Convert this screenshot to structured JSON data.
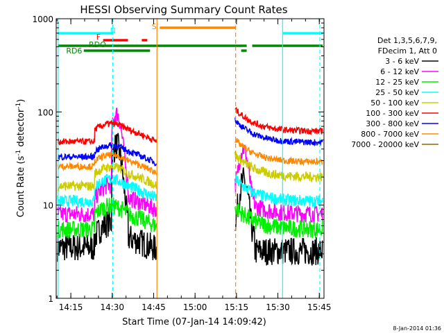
{
  "chart_data": {
    "type": "line",
    "title": "HESSI Observing Summary Count Rates",
    "xlabel": "Start Time (07-Jan-14 14:09:42)",
    "ylabel_main": "Count Rate (s",
    "ylabel_sup1": "-1",
    "ylabel_mid": " detector",
    "ylabel_sup2": "-1",
    "ylabel_end": ")",
    "y_scale": "log",
    "ylim": [
      1,
      1000
    ],
    "xlim_minutes": [
      0,
      97
    ],
    "x_ticks": [
      {
        "label": "14:15",
        "min": 5.3
      },
      {
        "label": "14:30",
        "min": 20.3
      },
      {
        "label": "14:45",
        "min": 35.3
      },
      {
        "label": "15:00",
        "min": 50.3
      },
      {
        "label": "15:15",
        "min": 65.3
      },
      {
        "label": "15:30",
        "min": 80.3
      },
      {
        "label": "15:45",
        "min": 95.3
      }
    ],
    "y_ticks": [
      {
        "label": "1",
        "v": 1
      },
      {
        "label": "10",
        "v": 10
      },
      {
        "label": "100",
        "v": 100
      },
      {
        "label": "1000",
        "v": 1000
      }
    ],
    "legend_header": [
      "Det 1,3,5,6,7,9,",
      "FDecim 1, Att 0"
    ],
    "series": [
      {
        "name": "3 - 6 keV",
        "color": "#000000"
      },
      {
        "name": "6 - 12 keV",
        "color": "#ff00ff"
      },
      {
        "name": "12 - 25 keV",
        "color": "#00ee00"
      },
      {
        "name": "25 - 50 keV",
        "color": "#00ffff"
      },
      {
        "name": "50 - 100 keV",
        "color": "#cccc00"
      },
      {
        "name": "100 - 300 keV",
        "color": "#ff0000"
      },
      {
        "name": "300 - 800 keV",
        "color": "#0000ff"
      },
      {
        "name": "800 - 7000 keV",
        "color": "#ff8800"
      },
      {
        "name": "7000 - 20000 keV",
        "color": "#886600"
      }
    ],
    "flags": [
      {
        "label": "N",
        "color": "#00ffff"
      },
      {
        "label": "F",
        "color": "#ff0000"
      },
      {
        "label": "RDO",
        "color": "#008800"
      },
      {
        "label": "RD6",
        "color": "#008800"
      },
      {
        "label": "S",
        "color": "#ff8800"
      }
    ],
    "timestamp": "8-Jan-2014 01:36"
  }
}
